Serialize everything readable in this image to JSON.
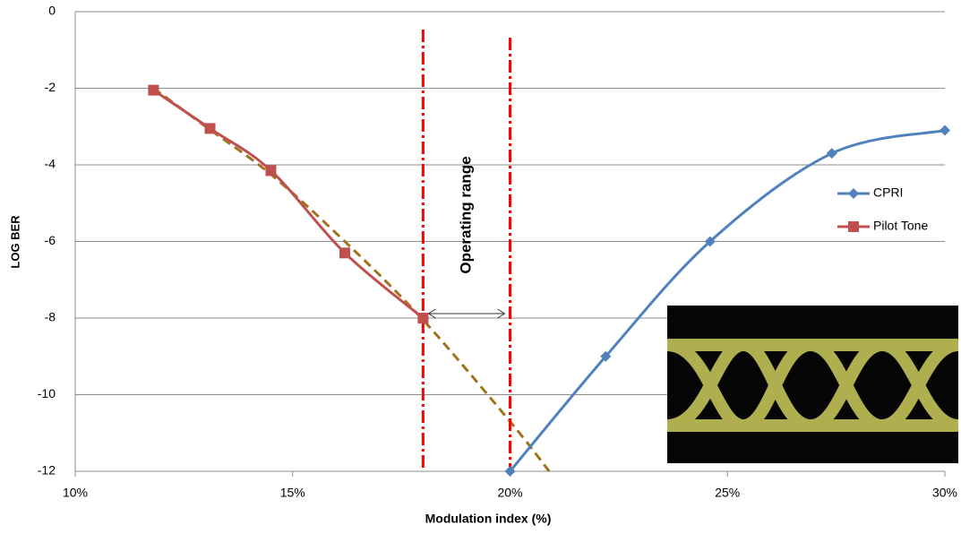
{
  "chart_data": {
    "type": "line",
    "xlabel": "Modulation index (%)",
    "ylabel": "LOG BER",
    "xlim": [
      10,
      30
    ],
    "xticks": [
      {
        "value": 10,
        "label": "10%"
      },
      {
        "value": 15,
        "label": "15%"
      },
      {
        "value": 20,
        "label": "20%"
      },
      {
        "value": 25,
        "label": "25%"
      },
      {
        "value": 30,
        "label": "30%"
      }
    ],
    "ylim": [
      -12,
      0
    ],
    "yticks": [
      0,
      -2,
      -4,
      -6,
      -8,
      -10,
      -12
    ],
    "grid": true,
    "legend": "right",
    "series": [
      {
        "name": "CPRI",
        "color": "#4f81bd",
        "marker": "diamond",
        "x": [
          20,
          22.2,
          24.6,
          27.4,
          30
        ],
        "values": [
          -12,
          -9,
          -6,
          -3.7,
          -3.1
        ]
      },
      {
        "name": "Pilot Tone",
        "color": "#c0504d",
        "marker": "square",
        "x": [
          11.8,
          13.1,
          14.5,
          16.2,
          18
        ],
        "values": [
          -2.05,
          -3.05,
          -4.15,
          -6.3,
          -8
        ]
      }
    ],
    "trend": {
      "color": "#a0741f",
      "x": [
        11.8,
        13,
        14.5,
        16.2,
        18,
        20,
        20.9
      ],
      "values": [
        -2,
        -3,
        -4.25,
        -6,
        -8.05,
        -10.7,
        -12
      ]
    },
    "vlines": [
      {
        "x": 18,
        "color": "#ff0000"
      },
      {
        "x": 20,
        "color": "#ff0000"
      }
    ],
    "annotation": "Operating range"
  }
}
